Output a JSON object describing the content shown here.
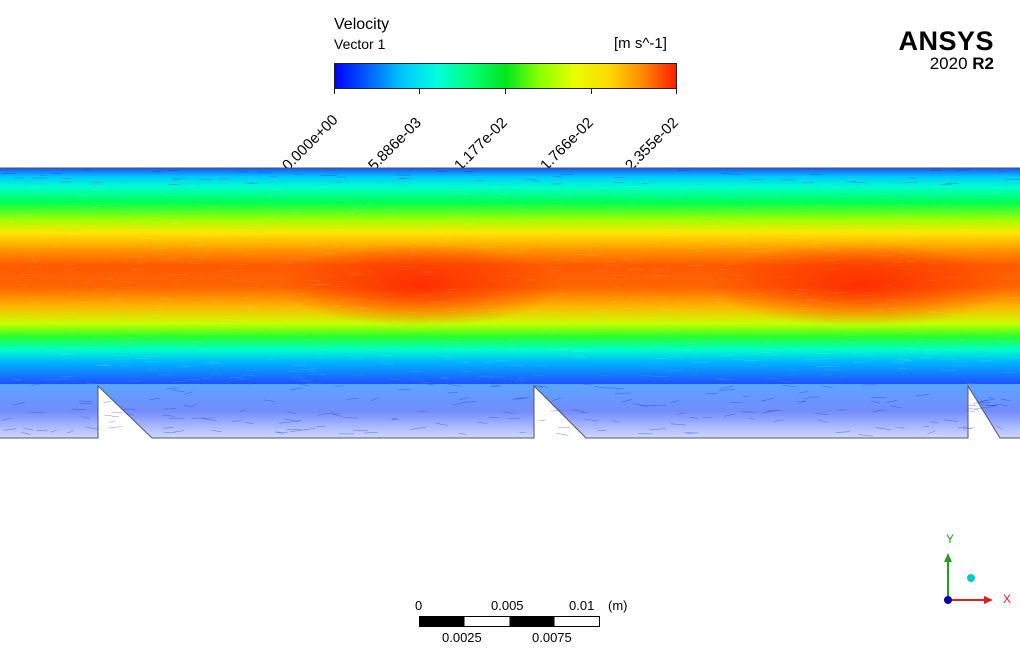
{
  "legend": {
    "title": "Velocity",
    "subtitle": "Vector 1",
    "unit": "[m s^-1]",
    "ticks": [
      "0.000e+00",
      "5.886e-03",
      "1.177e-02",
      "1.766e-02",
      "2.355e-02"
    ],
    "colormap": [
      "#0000ff",
      "#0064ff",
      "#00c8ff",
      "#00ffdc",
      "#00ff78",
      "#00e61e",
      "#8cff00",
      "#e6ff00",
      "#ffdc00",
      "#ff8c00",
      "#ff1e00"
    ]
  },
  "logo": {
    "name": "ANSYS",
    "version_year": "2020",
    "version_release": "R2"
  },
  "scale_bar": {
    "top_labels": [
      "0",
      "0.005",
      "0.01"
    ],
    "unit": "(m)",
    "bottom_labels": [
      "0.0025",
      "0.0075"
    ]
  },
  "triad": {
    "x_label": "X",
    "y_label": "Y",
    "x_color": "#e02020",
    "y_color": "#20a020",
    "z_color": "#0000aa",
    "sphere_color": "#00c8c8"
  }
}
